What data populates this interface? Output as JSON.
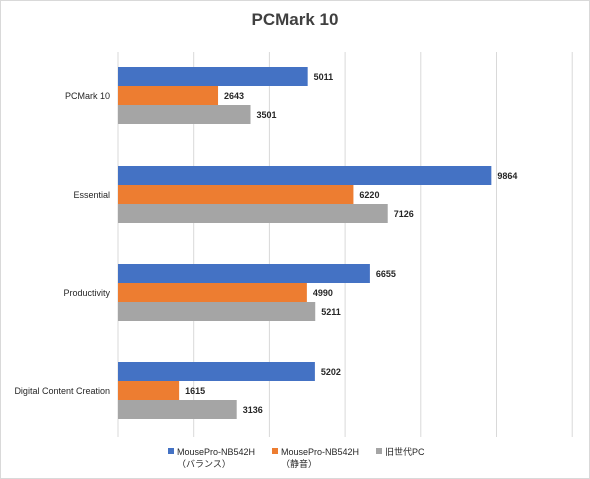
{
  "chart_data": {
    "type": "bar",
    "orientation": "horizontal",
    "title": "PCMark 10",
    "categories": [
      "PCMark 10",
      "Essential",
      "Productivity",
      "Digital Content Creation"
    ],
    "series": [
      {
        "name": "MousePro-NB542H\n（バランス）",
        "name_line1": "MousePro-NB542H",
        "name_line2": "（バランス）",
        "color": "#4472c4",
        "values": [
          5011,
          9864,
          6655,
          5202
        ]
      },
      {
        "name": "MousePro-NB542H\n（静音）",
        "name_line1": "MousePro-NB542H",
        "name_line2": "（静音）",
        "color": "#ed7d31",
        "values": [
          2643,
          6220,
          4990,
          1615
        ]
      },
      {
        "name": "旧世代PC",
        "name_line1": "旧世代PC",
        "name_line2": "",
        "color": "#a5a5a5",
        "values": [
          3501,
          7126,
          5211,
          3136
        ]
      }
    ],
    "xlim": [
      0,
      12000
    ],
    "grid": true,
    "legend_position": "bottom",
    "data_labels": true
  }
}
